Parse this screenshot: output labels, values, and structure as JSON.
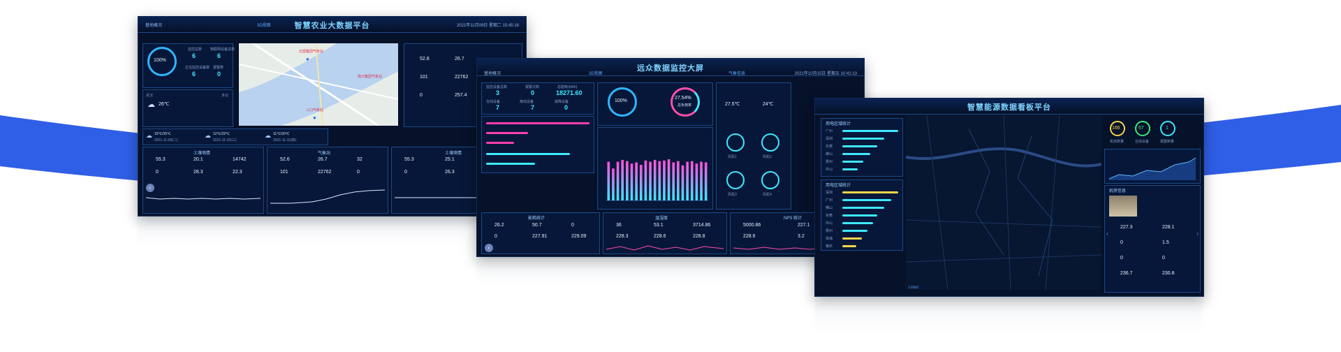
{
  "colors": {
    "wave": "#2f5fe6",
    "screen_bg": "#06112a",
    "accent": "#3ee8ff",
    "border": "#1b4a8a"
  },
  "screen_left": {
    "title": "智慧农业大数据平台",
    "tab_left": "基地概况",
    "tab_mid": "3D视图",
    "datetime": "2021年11月09日 星期二 15:45:16",
    "progress_label": "100%",
    "progress_value": 100,
    "stats": [
      {
        "label": "监控总数",
        "value": "6"
      },
      {
        "label": "物联网设备总数",
        "value": "6"
      },
      {
        "label": "正在监控设备数",
        "value": "6"
      },
      {
        "label": "报警数",
        "value": "0"
      }
    ],
    "weather": {
      "city": "武汉",
      "now": "26℃",
      "desc": "多云"
    },
    "forecast": [
      {
        "temp": "15℃/25℃",
        "date": "2021-11-09(二)"
      },
      {
        "temp": "12℃/22℃",
        "date": "2021-11-10(三)"
      },
      {
        "temp": "11℃/20℃",
        "date": "2021-11-11(四)"
      }
    ],
    "map_labels": [
      "北部集团气象站",
      "南沙集团气象站",
      "入口气象站"
    ],
    "side_values": [
      "52.8",
      "26.7",
      "101",
      "22762",
      "0",
      "257.4"
    ],
    "bottom_panels": [
      {
        "title": "土壤墒情",
        "values": [
          "55.3",
          "20.1",
          "14742",
          "0",
          "28.3",
          "22.3"
        ]
      },
      {
        "title": "气象站",
        "values": [
          "52.6",
          "26.7",
          "32",
          "101",
          "22762",
          "0"
        ]
      },
      {
        "title": "土壤墒情",
        "values": [
          "55.3",
          "25.1",
          "0",
          "0",
          "26.3",
          "0"
        ]
      }
    ]
  },
  "screen_mid": {
    "title": "远众数据监控大屏",
    "tab_left": "基地概况",
    "tab_mid": "3D视图",
    "tab_right": "气象信息",
    "datetime": "2021年10月15日 星期五 10:41:13",
    "stats": [
      {
        "label": "监控设备总数",
        "value": "3"
      },
      {
        "label": "报警次数",
        "value": "0"
      },
      {
        "label": "总能耗(kWh)",
        "value": "18271.60"
      },
      {
        "label": "在线设备",
        "value": "7"
      },
      {
        "label": "离线设备",
        "value": "7"
      },
      {
        "label": "故障设备",
        "value": "0"
      }
    ],
    "ring1": "100%",
    "ring2": "27.54%",
    "ring2_sub": "总负荷率",
    "fan_labels": [
      "风机1",
      "风机2",
      "风机3",
      "风机4",
      "风机5",
      "风机6"
    ],
    "fan_values": [
      "27.5℃",
      "24℃"
    ],
    "chart_data": {
      "type": "bar",
      "categories": [
        "1",
        "2",
        "3",
        "4",
        "5",
        "6",
        "7",
        "8",
        "9",
        "10",
        "11",
        "12",
        "13",
        "14",
        "15",
        "16",
        "17",
        "18",
        "19",
        "20",
        "21",
        "22"
      ],
      "values": [
        63,
        52,
        63,
        66,
        64,
        60,
        62,
        58,
        65,
        63,
        66,
        64,
        65,
        67,
        62,
        64,
        57,
        63,
        64,
        60,
        63,
        62
      ],
      "ylim": [
        0,
        100
      ]
    },
    "bottom_panels": [
      {
        "title": "能耗统计",
        "values": [
          "26.2",
          "50.7",
          "0",
          "0",
          "227.91",
          "229.09"
        ]
      },
      {
        "title": "温湿度",
        "values": [
          "36",
          "53.1",
          "3714.86",
          "228.3",
          "228.6",
          "228.8"
        ]
      },
      {
        "title": "NPS 统计",
        "values": [
          "5000.86",
          "227.1",
          "228.6",
          "3.2"
        ]
      }
    ]
  },
  "screen_right": {
    "title": "智慧能源数据看板平台",
    "circles": [
      {
        "value": "166",
        "label": "机房数量"
      },
      {
        "value": "67",
        "label": "在线设备"
      },
      {
        "value": "1",
        "label": "报警数量"
      }
    ],
    "left_list_title": "用电区域统计",
    "left_list": [
      "广州",
      "深圳",
      "东莞",
      "佛山",
      "惠州",
      "中山"
    ],
    "left_list2_title": "用电区域统计",
    "left_list2": [
      "深圳",
      "广州",
      "佛山",
      "东莞",
      "中山",
      "惠州",
      "珠海",
      "肇庆"
    ],
    "info_panel_title": "机房信息",
    "info_values": [
      "227.3",
      "228.1",
      "0",
      "1.5",
      "0",
      "0",
      "236.7",
      "230.8"
    ],
    "footer_tag": "LOGO"
  }
}
